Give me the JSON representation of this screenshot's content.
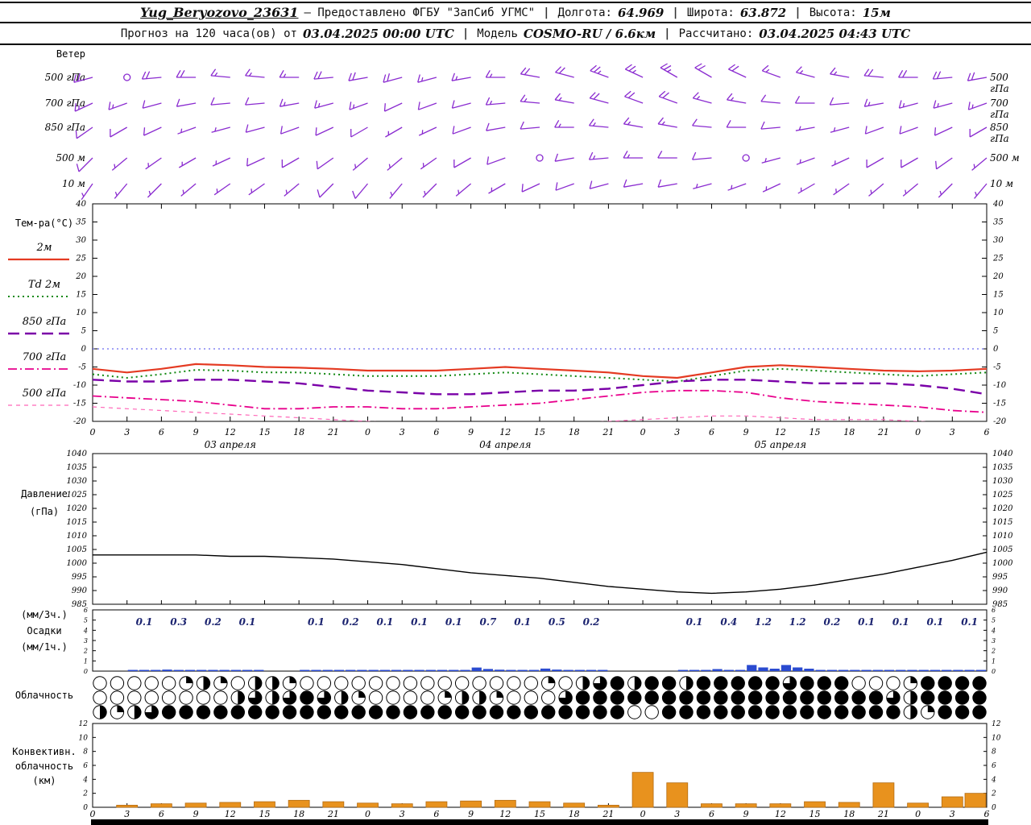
{
  "header": {
    "station": "Yug_Beryozovo_23631",
    "provider": "– Предоставлено ФГБУ \"ЗапСиб УГМС\"",
    "sep": "|",
    "lon_label": "Долгота:",
    "lon": "64.969",
    "lat_label": "Широта:",
    "lat": "63.872",
    "alt_label": "Высота:",
    "alt": "15м",
    "forecast_prefix": "Прогноз на 120 часа(ов) от",
    "run_time": "03.04.2025 00:00 UTC",
    "model_label": "Модель",
    "model": "COSMO-RU / 6.6км",
    "calc_label": "Рассчитано:",
    "calc_time": "03.04.2025 04:43 UTC"
  },
  "x_axis": {
    "hour_labels": [
      "0",
      "3",
      "6",
      "9",
      "12",
      "15",
      "18",
      "21",
      "0",
      "3",
      "6",
      "9",
      "12",
      "15",
      "18",
      "21",
      "0",
      "3",
      "6",
      "9",
      "12",
      "15",
      "18",
      "21",
      "0",
      "3",
      "6"
    ],
    "day_labels": [
      "03 апреля",
      "04 апреля",
      "05 апреля"
    ],
    "day_center_indices": [
      4,
      12,
      20
    ]
  },
  "colors": {
    "wind_barbs": "#8a2bd0",
    "zero_line": "#4444ee",
    "pressure_line": "#000000",
    "precip_bar": "#2a4ad0",
    "precip_text": "#1c2470",
    "conv_bar": "#e8921e",
    "conv_edge": "#b36b12",
    "frame": "#000000"
  },
  "chart_data": [
    {
      "id": "wind",
      "type": "wind-barbs",
      "label": "Ветер",
      "levels": [
        "500 гПа",
        "700 гПа",
        "850 гПа",
        "500 м",
        "10 м"
      ],
      "speed_units": "kt",
      "series": [
        {
          "level": "500 гПа",
          "dir_deg": [
            255,
            260,
            265,
            270,
            275,
            275,
            270,
            265,
            260,
            255,
            255,
            260,
            270,
            280,
            285,
            290,
            295,
            300,
            300,
            295,
            290,
            285,
            280,
            275,
            270,
            265,
            260
          ],
          "speed_kt": [
            20,
            0,
            20,
            20,
            15,
            15,
            15,
            20,
            20,
            20,
            15,
            15,
            15,
            20,
            20,
            25,
            25,
            25,
            20,
            20,
            15,
            15,
            15,
            20,
            20,
            20,
            20
          ]
        },
        {
          "level": "700 гПа",
          "dir_deg": [
            245,
            250,
            255,
            260,
            265,
            265,
            260,
            255,
            250,
            245,
            250,
            255,
            265,
            275,
            280,
            285,
            290,
            290,
            285,
            280,
            275,
            270,
            265,
            260,
            255,
            255,
            250
          ],
          "speed_kt": [
            15,
            15,
            10,
            10,
            10,
            10,
            15,
            15,
            15,
            10,
            10,
            10,
            15,
            15,
            15,
            20,
            20,
            20,
            15,
            15,
            10,
            10,
            10,
            15,
            15,
            15,
            15
          ]
        },
        {
          "level": "850 гПа",
          "dir_deg": [
            235,
            240,
            245,
            250,
            255,
            255,
            250,
            245,
            240,
            240,
            245,
            250,
            260,
            265,
            270,
            275,
            280,
            280,
            275,
            270,
            265,
            260,
            255,
            250,
            250,
            245,
            240
          ],
          "speed_kt": [
            10,
            10,
            10,
            5,
            5,
            10,
            10,
            10,
            10,
            5,
            5,
            10,
            10,
            10,
            15,
            15,
            15,
            15,
            10,
            10,
            10,
            5,
            5,
            10,
            10,
            10,
            10
          ]
        },
        {
          "level": "500 м",
          "dir_deg": [
            225,
            230,
            235,
            240,
            245,
            245,
            240,
            235,
            230,
            230,
            235,
            240,
            250,
            255,
            260,
            265,
            270,
            270,
            265,
            260,
            255,
            250,
            245,
            240,
            240,
            235,
            230
          ],
          "speed_kt": [
            10,
            5,
            5,
            5,
            5,
            10,
            10,
            10,
            5,
            5,
            5,
            10,
            10,
            0,
            10,
            15,
            15,
            10,
            10,
            0,
            5,
            5,
            5,
            10,
            10,
            10,
            5
          ]
        },
        {
          "level": "10 м",
          "dir_deg": [
            215,
            220,
            225,
            230,
            235,
            235,
            230,
            225,
            220,
            220,
            225,
            230,
            240,
            245,
            250,
            255,
            260,
            260,
            255,
            250,
            245,
            240,
            235,
            230,
            230,
            225,
            220
          ],
          "speed_kt": [
            5,
            5,
            5,
            5,
            5,
            5,
            5,
            10,
            10,
            5,
            5,
            5,
            5,
            10,
            10,
            10,
            10,
            10,
            5,
            5,
            5,
            5,
            5,
            5,
            5,
            5,
            5
          ]
        }
      ]
    },
    {
      "id": "temperature",
      "type": "line",
      "title": "Тем-ра(°C)",
      "ylim": [
        -20,
        40
      ],
      "yticks": [
        40,
        35,
        30,
        25,
        20,
        15,
        10,
        5,
        0,
        -5,
        -10,
        -15,
        -20
      ],
      "series": [
        {
          "name": "2м",
          "color": "#e43a22",
          "dash": "solid",
          "width": 2.2,
          "values": [
            -5.5,
            -6.5,
            -5.5,
            -4.2,
            -4.5,
            -5,
            -5.2,
            -5.5,
            -6,
            -6,
            -6,
            -5.5,
            -5,
            -5.5,
            -6,
            -6.5,
            -7.5,
            -8,
            -6.5,
            -5,
            -4.5,
            -5,
            -5.5,
            -6,
            -6.2,
            -6,
            -5.5
          ]
        },
        {
          "name": "Td 2м",
          "color": "#118811",
          "dash": "dotted",
          "width": 2,
          "values": [
            -7,
            -8,
            -7,
            -5.8,
            -6,
            -6.5,
            -6.5,
            -7,
            -7.5,
            -7.5,
            -7.5,
            -7,
            -6.5,
            -7,
            -7.5,
            -8,
            -8.5,
            -9,
            -7.5,
            -6,
            -5.5,
            -6,
            -6.5,
            -7,
            -7.5,
            -7,
            -6.5
          ]
        },
        {
          "name": "850 гПа",
          "color": "#7a00a8",
          "dash": "longdash",
          "width": 2.4,
          "values": [
            -8.5,
            -9,
            -9,
            -8.5,
            -8.5,
            -9,
            -9.5,
            -10.5,
            -11.5,
            -12,
            -12.5,
            -12.5,
            -12,
            -11.5,
            -11.5,
            -11,
            -10,
            -9,
            -8.5,
            -8.5,
            -9,
            -9.5,
            -9.5,
            -9.5,
            -10,
            -11,
            -12.5
          ]
        },
        {
          "name": "700 гПа",
          "color": "#e8008c",
          "dash": "dashdot",
          "width": 1.8,
          "values": [
            -13,
            -13.5,
            -14,
            -14.5,
            -15.5,
            -16.5,
            -16.5,
            -16,
            -16,
            -16.5,
            -16.5,
            -16,
            -15.5,
            -15,
            -14,
            -13,
            -12,
            -11.5,
            -11.5,
            -12,
            -13.5,
            -14.5,
            -15,
            -15.5,
            -16,
            -17,
            -17.5
          ]
        },
        {
          "name": "500 гПа",
          "color": "#ff66b8",
          "dash": "shortdash",
          "width": 1.2,
          "values": [
            -16,
            -16.5,
            -17,
            -17.5,
            -18,
            -18.5,
            -19,
            -19.5,
            -20,
            -20.5,
            -21,
            -21,
            -21,
            -20.5,
            -20.5,
            -20,
            -19.5,
            -19,
            -18.5,
            -18.5,
            -19,
            -19.5,
            -19.5,
            -19.5,
            -20,
            -20.5,
            -21
          ]
        }
      ]
    },
    {
      "id": "pressure",
      "type": "line",
      "label_line1": "Давление",
      "label_line2": "(гПа)",
      "ylim": [
        985,
        1040
      ],
      "yticks": [
        1040,
        1035,
        1030,
        1025,
        1020,
        1015,
        1010,
        1005,
        1000,
        995,
        990,
        985
      ],
      "values": [
        1003,
        1003,
        1003,
        1003,
        1002.5,
        1002.5,
        1002,
        1001.5,
        1000.5,
        999.5,
        998,
        996.5,
        995.5,
        994.5,
        993,
        991.5,
        990.5,
        989.5,
        989,
        989.5,
        990.5,
        992,
        994,
        996,
        998.5,
        1001,
        1004
      ]
    },
    {
      "id": "precipitation",
      "type": "bar",
      "label_line1": "(мм/3ч.)",
      "label_line2": "Осадки",
      "label_line3": "(мм/1ч.)",
      "ylim": [
        0,
        6
      ],
      "yticks": [
        6,
        5,
        4,
        3,
        2,
        1,
        0
      ],
      "interval_hours": 3,
      "values_3h": [
        null,
        0.1,
        0.3,
        0.2,
        0.1,
        null,
        0.1,
        0.2,
        0.1,
        0.1,
        0.1,
        0.7,
        0.1,
        0.5,
        0.2,
        null,
        null,
        0.1,
        0.4,
        1.2,
        1.2,
        0.2,
        0.1,
        0.1,
        0.1,
        0.1
      ]
    },
    {
      "id": "cloudiness",
      "type": "heatmap",
      "label": "Облачность",
      "rows_okta": [
        [
          0,
          0,
          0,
          0,
          0,
          2,
          4,
          2,
          0,
          4,
          4,
          2,
          0,
          0,
          0,
          0,
          0,
          0,
          0,
          0,
          0,
          0,
          0,
          0,
          0,
          0,
          2,
          0,
          4,
          6,
          8,
          4,
          8,
          8,
          4,
          8,
          8,
          8,
          8,
          8,
          6,
          8,
          8,
          8,
          0,
          0,
          0,
          2,
          8,
          8,
          8,
          8
        ],
        [
          0,
          0,
          0,
          0,
          0,
          0,
          0,
          0,
          4,
          6,
          4,
          6,
          8,
          6,
          4,
          2,
          0,
          0,
          0,
          0,
          2,
          4,
          4,
          2,
          0,
          0,
          0,
          6,
          8,
          8,
          8,
          8,
          8,
          8,
          8,
          8,
          8,
          8,
          8,
          8,
          8,
          8,
          8,
          8,
          8,
          8,
          6,
          4,
          8,
          8,
          8,
          8
        ],
        [
          4,
          2,
          4,
          6,
          8,
          8,
          8,
          8,
          8,
          8,
          8,
          8,
          8,
          8,
          8,
          8,
          8,
          8,
          8,
          8,
          8,
          8,
          8,
          8,
          8,
          8,
          8,
          8,
          8,
          8,
          8,
          0,
          0,
          8,
          8,
          8,
          8,
          8,
          8,
          8,
          8,
          8,
          8,
          8,
          8,
          8,
          8,
          4,
          2,
          8,
          8,
          8
        ]
      ]
    },
    {
      "id": "convective_cloud",
      "type": "bar",
      "label_line1": "Конвективн.",
      "label_line2": "облачность",
      "label_line3": "(км)",
      "ylim": [
        0,
        12
      ],
      "yticks": [
        12,
        10,
        8,
        6,
        4,
        2,
        0
      ],
      "values_km": [
        0,
        0.3,
        0.5,
        0.6,
        0.7,
        0.8,
        1,
        0.8,
        0.6,
        0.5,
        0.8,
        0.9,
        1,
        0.8,
        0.6,
        0.3,
        5,
        3.5,
        0.5,
        0.5,
        0.5,
        0.8,
        0.7,
        3.5,
        0.6,
        1.5,
        2
      ]
    }
  ]
}
